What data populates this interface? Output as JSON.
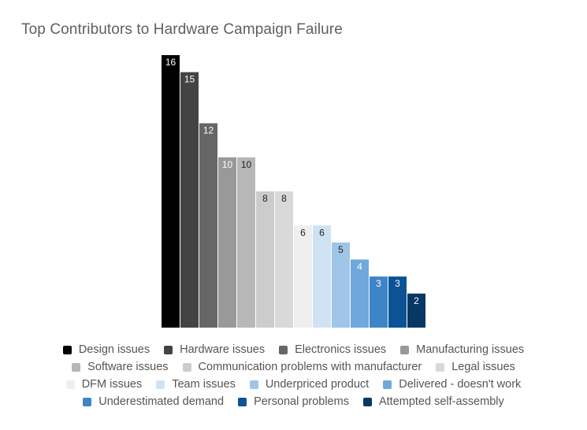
{
  "chart_data": {
    "type": "bar",
    "title": "Top Contributors to Hardware Campaign Failure",
    "xlabel": "",
    "ylabel": "",
    "ylim": [
      0,
      16
    ],
    "grid": false,
    "legend_position": "bottom",
    "series": [
      {
        "name": "Design issues",
        "value": 16,
        "color": "#000000"
      },
      {
        "name": "Hardware issues",
        "value": 15,
        "color": "#434343"
      },
      {
        "name": "Electronics issues",
        "value": 12,
        "color": "#666666"
      },
      {
        "name": "Manufacturing issues",
        "value": 10,
        "color": "#999999"
      },
      {
        "name": "Software issues",
        "value": 10,
        "color": "#b7b7b7"
      },
      {
        "name": "Communication problems with manufacturer",
        "value": 8,
        "color": "#cccccc"
      },
      {
        "name": "Legal issues",
        "value": 8,
        "color": "#d9d9d9"
      },
      {
        "name": "DFM issues",
        "value": 6,
        "color": "#efefef"
      },
      {
        "name": "Team issues",
        "value": 6,
        "color": "#cfe2f3"
      },
      {
        "name": "Underpriced product",
        "value": 5,
        "color": "#9fc5e8"
      },
      {
        "name": "Delivered - doesn't work",
        "value": 4,
        "color": "#6fa8dc"
      },
      {
        "name": "Underestimated demand",
        "value": 3,
        "color": "#3d85c6"
      },
      {
        "name": "Personal problems",
        "value": 3,
        "color": "#0b5394"
      },
      {
        "name": "Attempted self-assembly",
        "value": 2,
        "color": "#073763"
      }
    ]
  }
}
